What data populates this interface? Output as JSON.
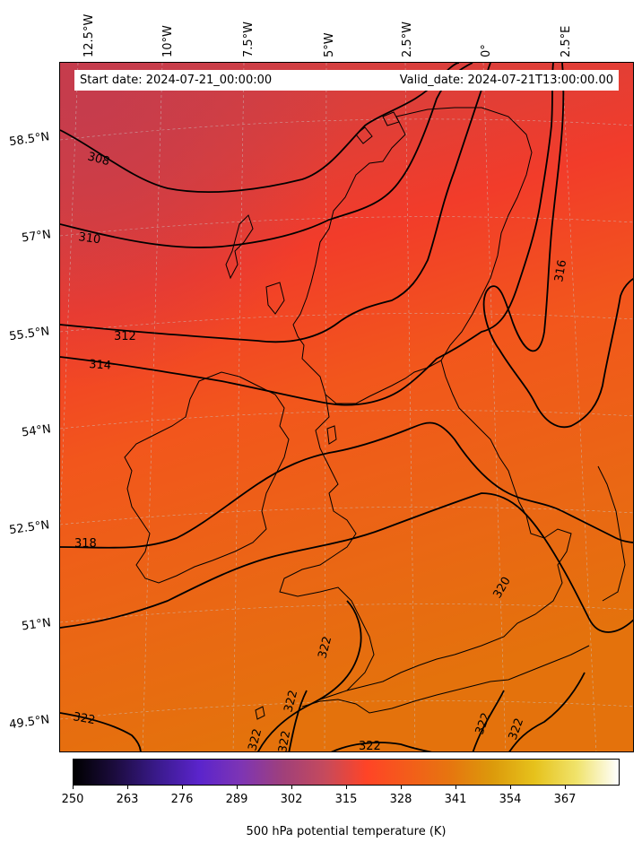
{
  "header": {
    "start_date": "Start date: 2024-07-21_00:00:00",
    "valid_date": "Valid_date: 2024-07-21T13:00:00.00"
  },
  "longitude_labels": [
    "12.5°W",
    "10°W",
    "7.5°W",
    "5°W",
    "2.5°W",
    "0°",
    "2.5°E"
  ],
  "latitude_labels": [
    "58.5°N",
    "57°N",
    "55.5°N",
    "54°N",
    "52.5°N",
    "51°N",
    "49.5°N"
  ],
  "contour_labels": [
    "308",
    "310",
    "312",
    "314",
    "316",
    "318",
    "320",
    "322",
    "322",
    "322",
    "322",
    "322",
    "322",
    "322",
    "322"
  ],
  "colorbar": {
    "ticks": [
      "250",
      "263",
      "276",
      "289",
      "302",
      "315",
      "328",
      "341",
      "354",
      "367"
    ],
    "title": "500 hPa potential temperature (K)",
    "colormap": [
      "#000000",
      "#1c0c3f",
      "#3a1a8c",
      "#5b24cc",
      "#7e35b4",
      "#a0407a",
      "#c64a5c",
      "#ff4426",
      "#f35d1a",
      "#e6760f",
      "#dc9a0b",
      "#e6c21c",
      "#f0e36b",
      "#ffffff"
    ]
  },
  "map_colors": {
    "cold_northwest": "#cd4048",
    "mid": "#f43c2a",
    "warm_south": "#ea6d12"
  }
}
